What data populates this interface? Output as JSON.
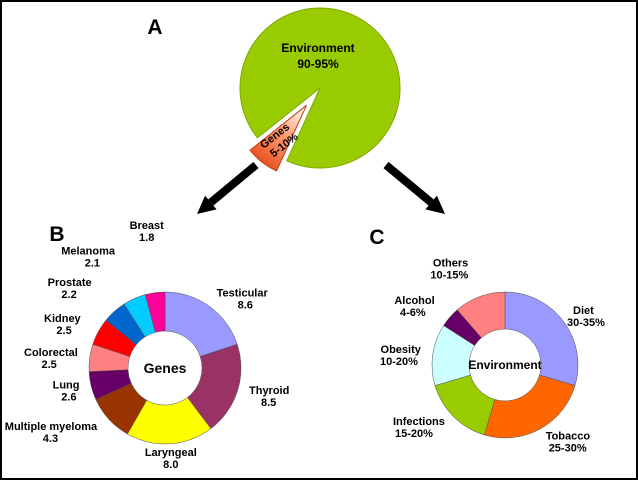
{
  "figure": {
    "panels": {
      "a": "A",
      "b": "B",
      "c": "C"
    }
  },
  "chart_data": [
    {
      "id": "overview-pie",
      "type": "pie",
      "legend": "none",
      "slices": [
        {
          "label": "Environment",
          "value_text": "90-95%",
          "value": 92.5,
          "color": "#99CC00"
        },
        {
          "label": "Genes",
          "value_text": "5-10%",
          "value": 7.5,
          "color": "#FF6633",
          "exploded": true,
          "gradient": [
            "#E03A0C",
            "#FF9B6E",
            "#FFFFFF"
          ]
        }
      ]
    },
    {
      "id": "genes-donut",
      "type": "donut",
      "center_label": "Genes",
      "slices": [
        {
          "label": "Testicular",
          "value": 8.6,
          "value_text": "8.6",
          "color": "#9999FF"
        },
        {
          "label": "Thyroid",
          "value": 8.5,
          "value_text": "8.5",
          "color": "#993366"
        },
        {
          "label": "Laryngeal",
          "value": 8.0,
          "value_text": "8.0",
          "color": "#FFFF00"
        },
        {
          "label": "Multiple myeloma",
          "value": 4.3,
          "value_text": "4.3",
          "color": "#993300",
          "label_d": 4
        },
        {
          "label": "Lung",
          "value": 2.6,
          "value_text": "2.6",
          "color": "#660066"
        },
        {
          "label": "Colorectal",
          "value": 2.5,
          "value_text": "2.5",
          "color": "#FF8080"
        },
        {
          "label": "Kidney",
          "value": 2.5,
          "value_text": "2.5",
          "color": "#FF0000",
          "label_d": 8
        },
        {
          "label": "Prostate",
          "value": 2.2,
          "value_text": "2.2",
          "color": "#0066CC",
          "label_d": 22
        },
        {
          "label": "Melanoma",
          "value": 2.1,
          "value_text": "2.1",
          "color": "#00CCFF",
          "label_d": 36
        },
        {
          "label": "Breast",
          "value": 1.8,
          "value_text": "1.8",
          "color": "#FF0099",
          "label_d": 52
        }
      ]
    },
    {
      "id": "environment-donut",
      "type": "donut",
      "center_label": "Environment",
      "slices": [
        {
          "label": "Diet",
          "value": 32.5,
          "value_text": "30-35%",
          "color": "#9999FF"
        },
        {
          "label": "Tobacco",
          "value": 27.5,
          "value_text": "25-30%",
          "color": "#FF6600"
        },
        {
          "label": "Infections",
          "value": 17.5,
          "value_text": "15-20%",
          "color": "#99CC00"
        },
        {
          "label": "Obesity",
          "value": 15,
          "value_text": "10-20%",
          "color": "#CCFFFF"
        },
        {
          "label": "Alcohol",
          "value": 5,
          "value_text": "4-6%",
          "color": "#660066",
          "label_d": 8
        },
        {
          "label": "Others",
          "value": 12.5,
          "value_text": "10-15%",
          "color": "#FF8080",
          "label_d": 20
        }
      ]
    }
  ]
}
